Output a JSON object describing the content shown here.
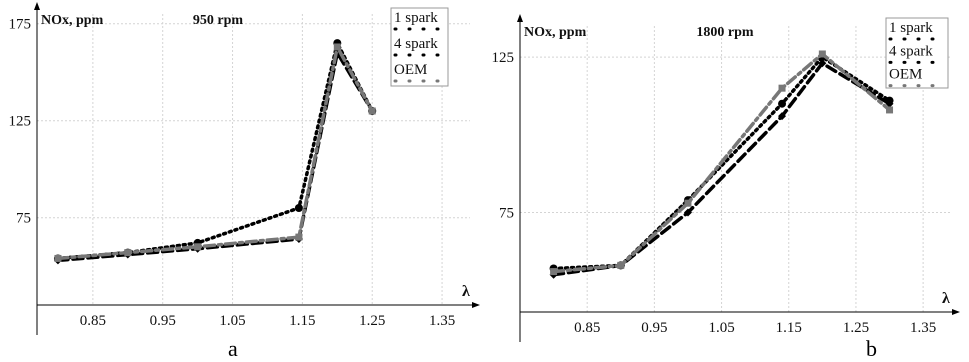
{
  "chart_data": [
    {
      "type": "line",
      "panel_label": "a",
      "title": "950 rpm",
      "ylabel": "NOx, ppm",
      "xlabel": "λ",
      "xlim": [
        0.77,
        1.39
      ],
      "ylim": [
        30,
        180
      ],
      "xticks": [
        "0.85",
        "0.95",
        "1.05",
        "1.15",
        "1.25",
        "1.35"
      ],
      "yticks": [
        "75",
        "125",
        "175"
      ],
      "grid": true,
      "legend_position": "top-right",
      "series": [
        {
          "name": "1 spark",
          "style": "dotted",
          "color": "#000000",
          "x": [
            0.8,
            0.9,
            1.0,
            1.145,
            1.2,
            1.25
          ],
          "y": [
            54,
            57,
            62,
            80,
            165,
            130
          ]
        },
        {
          "name": "4 spark",
          "style": "dashed",
          "color": "#000000",
          "x": [
            0.8,
            0.9,
            1.0,
            1.145,
            1.2,
            1.25
          ],
          "y": [
            53,
            56,
            59,
            64,
            160,
            130
          ]
        },
        {
          "name": "OEM",
          "style": "dashdot",
          "color": "#777777",
          "x": [
            0.8,
            0.9,
            1.0,
            1.145,
            1.2,
            1.25
          ],
          "y": [
            54,
            57,
            60,
            65,
            163,
            130
          ]
        }
      ]
    },
    {
      "type": "line",
      "panel_label": "b",
      "title": "1800 rpm",
      "ylabel": "NOx, ppm",
      "xlabel": "λ",
      "xlim": [
        0.75,
        1.39
      ],
      "ylim": [
        43,
        135
      ],
      "xticks": [
        "0.85",
        "0.95",
        "1.05",
        "1.15",
        "1.25",
        "1.35"
      ],
      "yticks": [
        "75",
        "125"
      ],
      "grid": true,
      "legend_position": "top-right",
      "series": [
        {
          "name": "1 spark",
          "style": "dotted",
          "color": "#000000",
          "x": [
            0.8,
            0.9,
            1.0,
            1.14,
            1.2,
            1.3
          ],
          "y": [
            57,
            58,
            79,
            110,
            125,
            111
          ]
        },
        {
          "name": "4 spark",
          "style": "dashed",
          "color": "#000000",
          "x": [
            0.8,
            0.9,
            1.0,
            1.14,
            1.2,
            1.3
          ],
          "y": [
            55,
            58,
            75,
            106,
            123,
            110
          ]
        },
        {
          "name": "OEM",
          "style": "dashdot",
          "color": "#777777",
          "x": [
            0.8,
            0.9,
            1.0,
            1.14,
            1.2,
            1.3
          ],
          "y": [
            56,
            58,
            78,
            115,
            126,
            108
          ]
        }
      ]
    }
  ]
}
